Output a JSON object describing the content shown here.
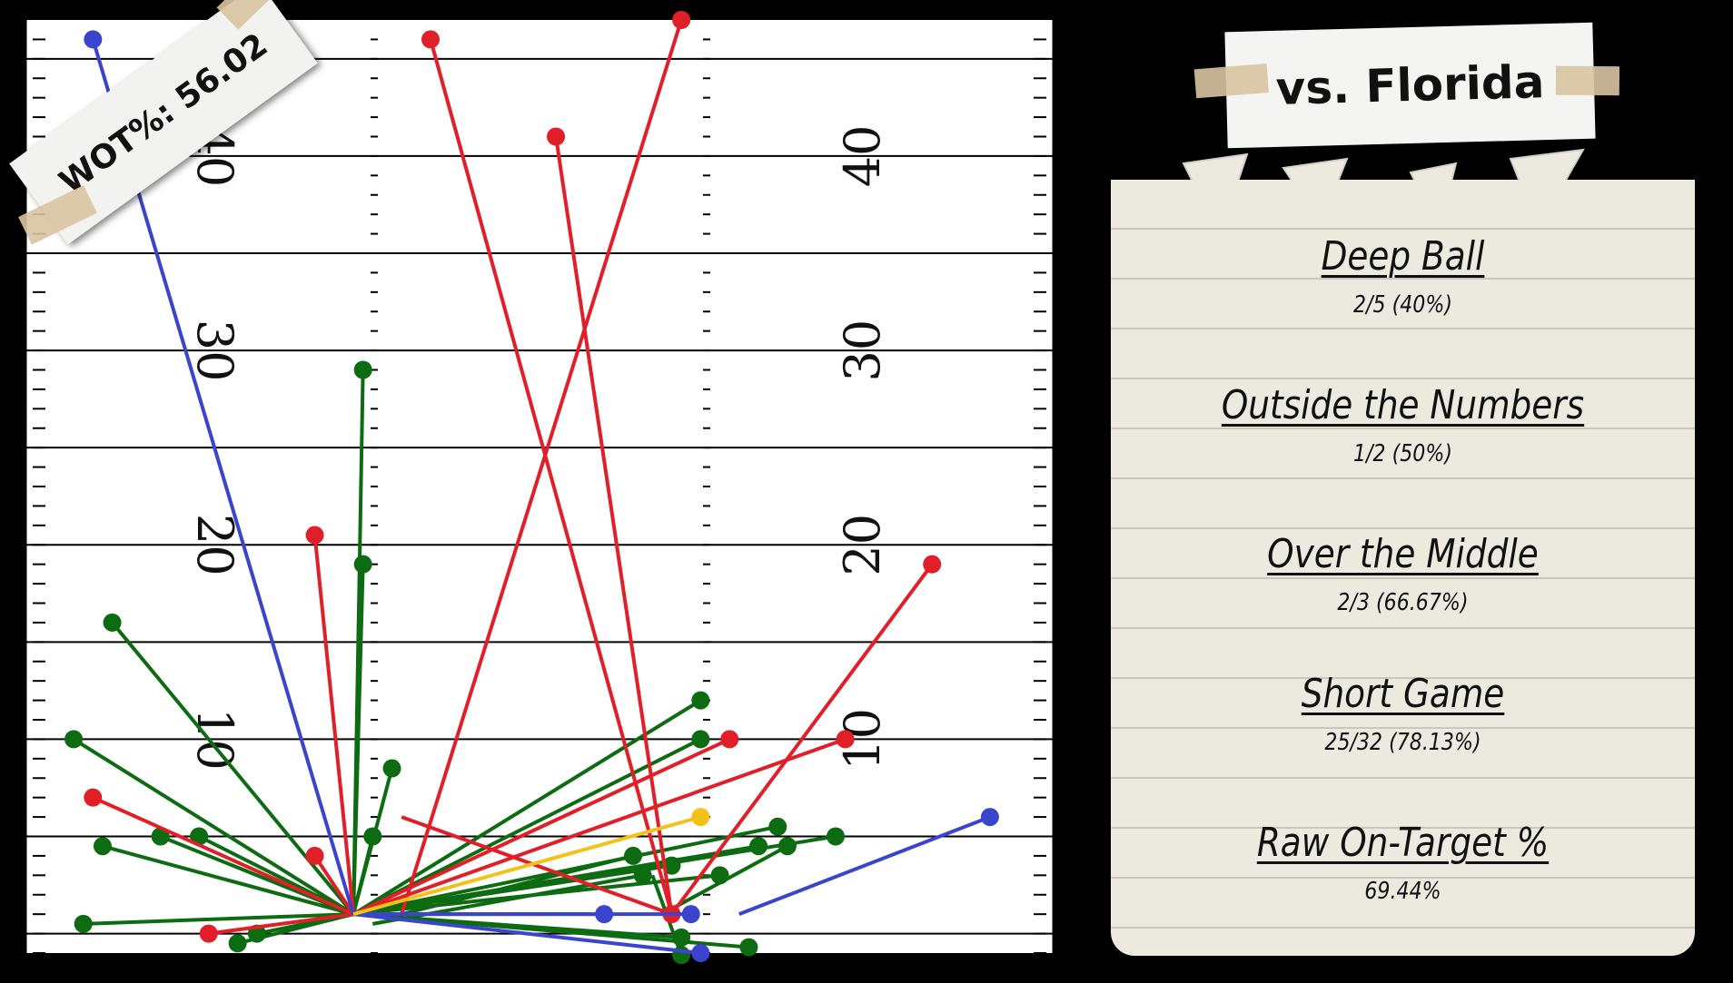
{
  "header": {
    "title": "vs. Florida"
  },
  "wot_label": "WOT%: 56.02",
  "stats": [
    {
      "title": "Deep Ball",
      "value": "2/5 (40%)"
    },
    {
      "title": "Outside the Numbers",
      "value": "1/2 (50%)"
    },
    {
      "title": "Over the Middle",
      "value": "2/3 (66.67%)"
    },
    {
      "title": "Short Game",
      "value": "25/32 (78.13%)"
    },
    {
      "title": "Raw On-Target %",
      "value": "69.44%"
    }
  ],
  "colors": {
    "complete": "#0d6b12",
    "incomplete": "#e01f28",
    "intercepted_or_other": "#3a44cc",
    "highlight": "#f2c21b",
    "background": "#000000",
    "field": "#ffffff"
  },
  "chart_data": {
    "type": "scatter",
    "title": "",
    "xlabel": "",
    "ylabel": "",
    "field_numbers": [
      "10",
      "20",
      "30",
      "40"
    ],
    "xlim": [
      0,
      53.3
    ],
    "ylim": [
      -2,
      46
    ],
    "series": [
      {
        "color_key": "complete",
        "passes": [
          {
            "x0": 17,
            "y0": 0,
            "x1": 17.5,
            "y1": 28
          },
          {
            "x0": 17,
            "y0": 0,
            "x1": 17.5,
            "y1": 18
          },
          {
            "x0": 17,
            "y0": 0,
            "x1": 4.5,
            "y1": 15
          },
          {
            "x0": 17,
            "y0": 0,
            "x1": 2.5,
            "y1": 9
          },
          {
            "x0": 17,
            "y0": 0,
            "x1": 7,
            "y1": 4
          },
          {
            "x0": 17,
            "y0": 0,
            "x1": 4,
            "y1": 3.5
          },
          {
            "x0": 17,
            "y0": 0,
            "x1": 9,
            "y1": 4
          },
          {
            "x0": 17,
            "y0": 0,
            "x1": 18,
            "y1": 4
          },
          {
            "x0": 17,
            "y0": 0,
            "x1": 19,
            "y1": 7.5
          },
          {
            "x0": 17,
            "y0": 0,
            "x1": 35,
            "y1": 11
          },
          {
            "x0": 17,
            "y0": 0,
            "x1": 35,
            "y1": 9
          },
          {
            "x0": 19.5,
            "y0": 0,
            "x1": 31.5,
            "y1": 3
          },
          {
            "x0": 18,
            "y0": -0.5,
            "x1": 32,
            "y1": 2
          },
          {
            "x0": 17,
            "y0": 0,
            "x1": 33.5,
            "y1": 2.5
          },
          {
            "x0": 17,
            "y0": 0,
            "x1": 36,
            "y1": 2
          },
          {
            "x0": 17,
            "y0": 0,
            "x1": 38,
            "y1": 3.5
          },
          {
            "x0": 17,
            "y0": 0,
            "x1": 39,
            "y1": 4.5
          },
          {
            "x0": 17,
            "y0": 0,
            "x1": 42,
            "y1": 4
          },
          {
            "x0": 17,
            "y0": 0,
            "x1": 3,
            "y1": -0.5
          },
          {
            "x0": 17,
            "y0": 0,
            "x1": 11,
            "y1": -1.5
          },
          {
            "x0": 17,
            "y0": 0,
            "x1": 12,
            "y1": -1
          },
          {
            "x0": 17,
            "y0": 0,
            "x1": 34,
            "y1": -1.2
          },
          {
            "x0": 17,
            "y0": 0,
            "x1": 37.5,
            "y1": -1.7
          },
          {
            "x0": 32.5,
            "y0": 2,
            "x1": 34,
            "y1": -2.1
          },
          {
            "x0": 33,
            "y0": 0,
            "x1": 39.5,
            "y1": 3.5
          }
        ]
      },
      {
        "color_key": "incomplete",
        "passes": [
          {
            "x0": 33.5,
            "y0": 0,
            "x1": 21,
            "y1": 45
          },
          {
            "x0": 33.5,
            "y0": 0,
            "x1": 27.5,
            "y1": 40
          },
          {
            "x0": 19.5,
            "y0": 0,
            "x1": 34,
            "y1": 46
          },
          {
            "x0": 17,
            "y0": 0,
            "x1": 15,
            "y1": 19.5
          },
          {
            "x0": 17,
            "y0": 0,
            "x1": 3.5,
            "y1": 6
          },
          {
            "x0": 17,
            "y0": 0,
            "x1": 15,
            "y1": 3
          },
          {
            "x0": 17,
            "y0": 0,
            "x1": 9.5,
            "y1": -1
          },
          {
            "x0": 17,
            "y0": 0,
            "x1": 36.5,
            "y1": 9
          },
          {
            "x0": 17,
            "y0": 0,
            "x1": 42.5,
            "y1": 9
          },
          {
            "x0": 19.5,
            "y0": 5,
            "x1": 33.5,
            "y1": 0
          },
          {
            "x0": 33.5,
            "y0": 0,
            "x1": 47,
            "y1": 18
          }
        ]
      },
      {
        "color_key": "intercepted_or_other",
        "passes": [
          {
            "x0": 17,
            "y0": 0,
            "x1": 3.5,
            "y1": 45
          },
          {
            "x0": 37,
            "y0": 0,
            "x1": 50,
            "y1": 5
          },
          {
            "x0": 17,
            "y0": 0,
            "x1": 35,
            "y1": -2
          },
          {
            "x0": 17,
            "y0": 0,
            "x1": 30,
            "y1": 0
          },
          {
            "x0": 17,
            "y0": 0,
            "x1": 34.5,
            "y1": 0
          }
        ]
      },
      {
        "color_key": "highlight",
        "passes": [
          {
            "x0": 17,
            "y0": 0,
            "x1": 35,
            "y1": 5
          }
        ]
      }
    ]
  }
}
